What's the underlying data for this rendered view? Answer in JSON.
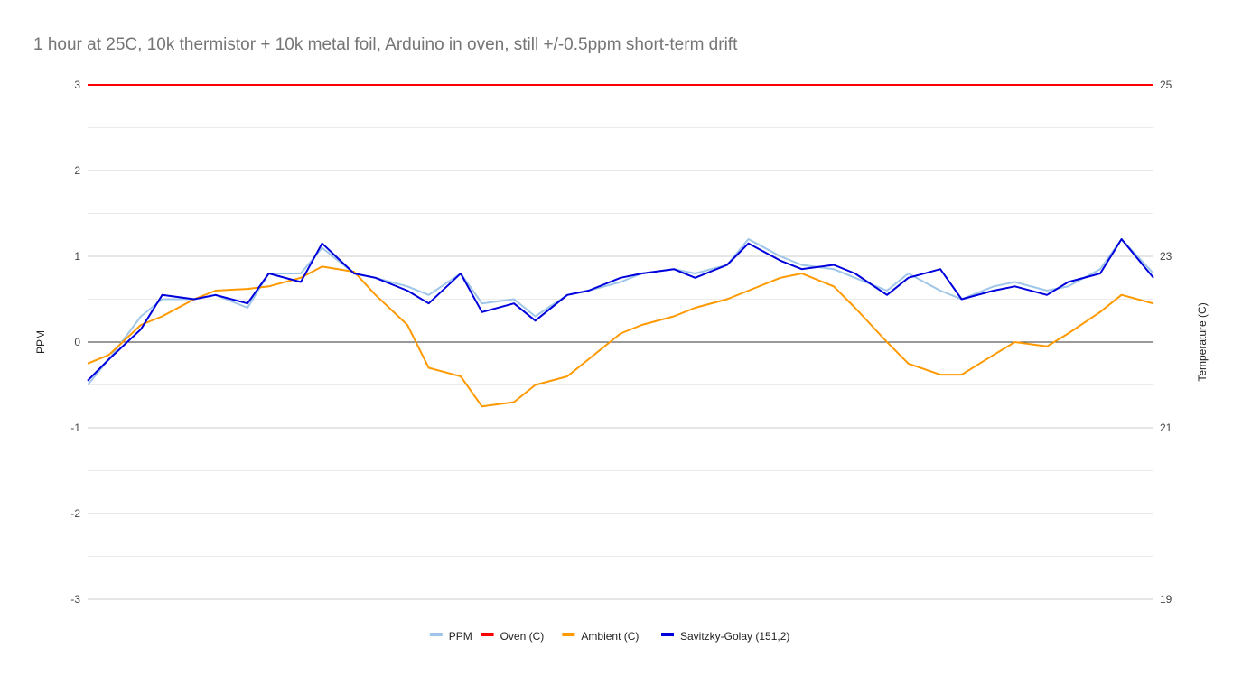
{
  "chart_data": {
    "type": "line",
    "title": "1 hour at 25C, 10k thermistor + 10k metal foil, Arduino in oven, still +/-0.5ppm short-term drift",
    "ylabel": "PPM",
    "y2label": "Temperature (C)",
    "ylim": [
      -3,
      3
    ],
    "y2lim": [
      19,
      25
    ],
    "yticks": [
      -3,
      -2,
      -1,
      0,
      1,
      2,
      3
    ],
    "y2ticks": [
      19,
      21,
      23,
      25
    ],
    "grid": true,
    "legend_position": "bottom",
    "x_normalized": [
      0,
      0.02,
      0.05,
      0.07,
      0.1,
      0.12,
      0.15,
      0.17,
      0.2,
      0.22,
      0.25,
      0.27,
      0.3,
      0.32,
      0.35,
      0.37,
      0.4,
      0.42,
      0.45,
      0.47,
      0.5,
      0.52,
      0.55,
      0.57,
      0.6,
      0.62,
      0.65,
      0.67,
      0.7,
      0.72,
      0.75,
      0.77,
      0.8,
      0.82,
      0.85,
      0.87,
      0.9,
      0.92,
      0.95,
      0.97,
      1.0
    ],
    "series": [
      {
        "name": "PPM",
        "axis": "left",
        "color": "#9fc5e8",
        "values": [
          -0.5,
          -0.2,
          0.3,
          0.5,
          0.5,
          0.55,
          0.4,
          0.8,
          0.8,
          1.1,
          0.8,
          0.75,
          0.65,
          0.55,
          0.8,
          0.45,
          0.5,
          0.3,
          0.55,
          0.6,
          0.7,
          0.8,
          0.85,
          0.8,
          0.9,
          1.2,
          1.0,
          0.9,
          0.85,
          0.75,
          0.6,
          0.8,
          0.6,
          0.5,
          0.65,
          0.7,
          0.6,
          0.65,
          0.85,
          1.2,
          0.8
        ]
      },
      {
        "name": "Oven (C)",
        "axis": "right",
        "color": "#ff0000",
        "values": [
          25.0,
          25.0,
          25.0,
          25.0,
          25.0,
          25.0,
          25.0,
          25.0,
          25.0,
          25.0,
          25.0,
          25.0,
          25.0,
          25.0,
          25.0,
          25.0,
          25.0,
          25.0,
          25.0,
          25.0,
          25.0,
          25.0,
          25.0,
          25.0,
          25.0,
          25.0,
          25.0,
          25.0,
          25.0,
          25.0,
          25.0,
          25.0,
          25.0,
          25.0,
          25.0,
          25.0,
          25.0,
          25.0,
          25.0,
          25.0,
          25.0
        ]
      },
      {
        "name": "Ambient (C)",
        "axis": "right",
        "color": "#ff9900",
        "values": [
          21.75,
          21.85,
          22.2,
          22.3,
          22.5,
          22.6,
          22.62,
          22.65,
          22.75,
          22.88,
          22.82,
          22.55,
          22.2,
          21.7,
          21.6,
          21.25,
          21.3,
          21.5,
          21.6,
          21.8,
          22.1,
          22.2,
          22.3,
          22.4,
          22.5,
          22.6,
          22.75,
          22.8,
          22.65,
          22.4,
          22.0,
          21.75,
          21.62,
          21.62,
          21.85,
          22.0,
          21.95,
          22.1,
          22.35,
          22.55,
          22.45
        ]
      },
      {
        "name": "Savitzky-Golay (151,2)",
        "axis": "left",
        "color": "#0000dd",
        "values": [
          -0.45,
          -0.2,
          0.15,
          0.55,
          0.5,
          0.55,
          0.45,
          0.8,
          0.7,
          1.15,
          0.8,
          0.75,
          0.6,
          0.45,
          0.8,
          0.35,
          0.45,
          0.25,
          0.55,
          0.6,
          0.75,
          0.8,
          0.85,
          0.75,
          0.9,
          1.15,
          0.95,
          0.85,
          0.9,
          0.8,
          0.55,
          0.75,
          0.85,
          0.5,
          0.6,
          0.65,
          0.55,
          0.7,
          0.8,
          1.2,
          0.75
        ]
      }
    ]
  }
}
